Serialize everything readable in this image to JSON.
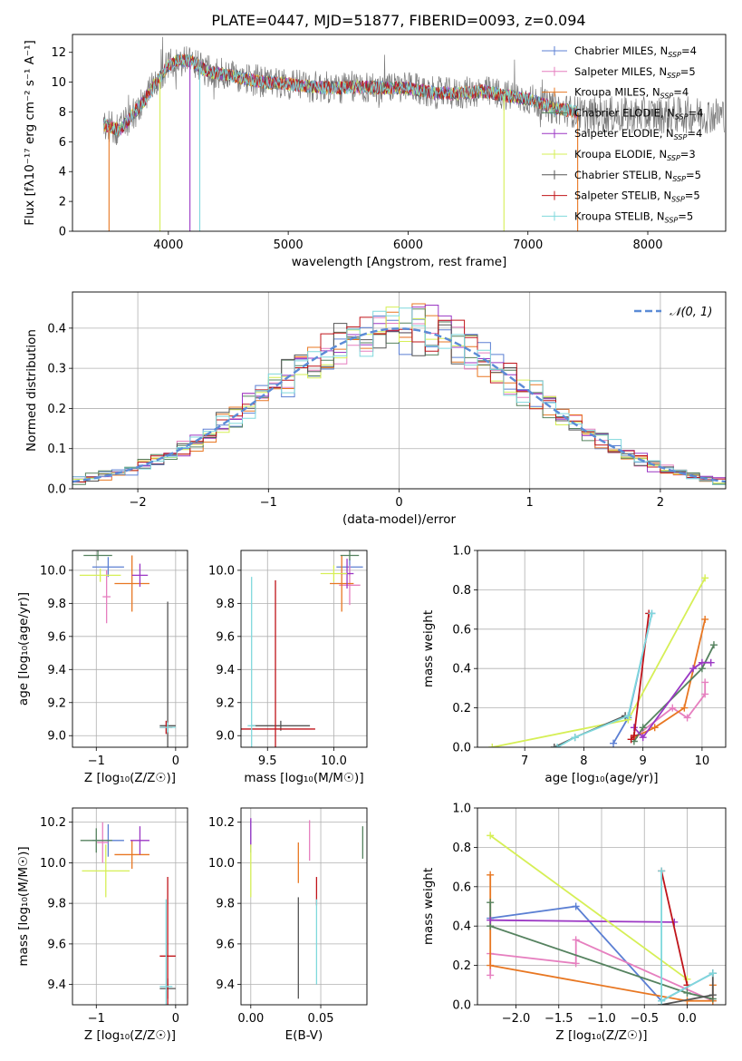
{
  "figure": {
    "title": "PLATE=0447, MJD=51877, FIBERID=0093, z=0.094"
  },
  "models": [
    {
      "name": "Chabrier MILES",
      "nssp": "4",
      "color": "#5b7fd3"
    },
    {
      "name": "Salpeter MILES",
      "nssp": "5",
      "color": "#e67fbf"
    },
    {
      "name": "Kroupa MILES",
      "nssp": "4",
      "color": "#e87722"
    },
    {
      "name": "Chabrier ELODIE",
      "nssp": "4",
      "color": "#55825f"
    },
    {
      "name": "Salpeter ELODIE",
      "nssp": "4",
      "color": "#9b37c4"
    },
    {
      "name": "Kroupa ELODIE",
      "nssp": "3",
      "color": "#d6ef56"
    },
    {
      "name": "Chabrier STELIB",
      "nssp": "5",
      "color": "#555555"
    },
    {
      "name": "Salpeter STELIB",
      "nssp": "5",
      "color": "#c0141a"
    },
    {
      "name": "Kroupa STELIB",
      "nssp": "5",
      "color": "#7fd8dc"
    }
  ],
  "chart_data": [
    {
      "id": "spectrum",
      "type": "line",
      "title": "PLATE=0447, MJD=51877, FIBERID=0093, z=0.094",
      "xlabel": "wavelength [Angstrom, rest frame]",
      "ylabel": "Flux [fλ10⁻¹⁷ erg cm⁻² s⁻¹ A⁻¹]",
      "xlim": [
        3200,
        8650
      ],
      "ylim": [
        0,
        13.2
      ],
      "xticks": [
        "4000",
        "5000",
        "6000",
        "7000",
        "8000"
      ],
      "yticks": [
        "0",
        "2",
        "4",
        "6",
        "8",
        "10",
        "12"
      ],
      "grid": false,
      "legend_position": "top-right",
      "continuum": {
        "x": [
          3450,
          3500,
          3600,
          3700,
          3800,
          3900,
          4000,
          4100,
          4200,
          4300,
          4400,
          4500,
          4600,
          4800,
          5000,
          5200,
          5400,
          5600,
          5800,
          6000,
          6200,
          6400,
          6600,
          6800,
          7000,
          7200,
          7400
        ],
        "y": [
          7.2,
          7.0,
          6.8,
          7.8,
          8.8,
          10.0,
          11.1,
          11.5,
          11.4,
          10.8,
          10.6,
          10.5,
          10.3,
          10.0,
          9.9,
          9.7,
          9.6,
          9.7,
          9.6,
          9.6,
          9.3,
          9.2,
          9.4,
          9.1,
          8.9,
          8.3,
          8.0
        ]
      },
      "observed_noise_amplitude": 1.1
    },
    {
      "id": "residuals",
      "type": "histogram",
      "xlabel": "(data-model)/error",
      "ylabel": "Normed distribution",
      "xlim": [
        -2.5,
        2.5
      ],
      "ylim": [
        0,
        0.49
      ],
      "xticks": [
        "−2",
        "−1",
        "0",
        "1",
        "2"
      ],
      "yticks": [
        "0.0",
        "0.1",
        "0.2",
        "0.3",
        "0.4"
      ],
      "grid": true,
      "legend_position": "top-right",
      "reference_label": "𝒩(0, 1)",
      "bin_width": 0.1
    },
    {
      "id": "age-vs-Z",
      "type": "scatter",
      "xlabel": "Z [log₁₀(Z/Z☉)]",
      "ylabel": "age  [log₁₀(age/yr)]",
      "xlim": [
        -1.3,
        0.15
      ],
      "ylim": [
        8.93,
        10.12
      ],
      "xticks": [
        "−1",
        "0"
      ],
      "yticks": [
        "9.0",
        "9.2",
        "9.4",
        "9.6",
        "9.8",
        "10.0"
      ],
      "grid": true,
      "points": [
        {
          "model": 0,
          "x": -0.85,
          "y": 10.02,
          "xerr": 0.2,
          "yerr": 0.06
        },
        {
          "model": 1,
          "x": -0.87,
          "y": 9.84,
          "xerr": 0.05,
          "yerr": 0.16
        },
        {
          "model": 2,
          "x": -0.55,
          "y": 9.92,
          "xerr": 0.22,
          "yerr": 0.17
        },
        {
          "model": 3,
          "x": -0.98,
          "y": 10.09,
          "xerr": 0.18,
          "yerr": 0.03
        },
        {
          "model": 4,
          "x": -0.45,
          "y": 9.97,
          "xerr": 0.1,
          "yerr": 0.07
        },
        {
          "model": 5,
          "x": -0.95,
          "y": 9.97,
          "xerr": 0.26,
          "yerr": 0.04
        },
        {
          "model": 6,
          "x": -0.1,
          "y": 9.06,
          "xerr": 0.1,
          "yerr": 0.75
        },
        {
          "model": 7,
          "x": -0.12,
          "y": 9.05,
          "xerr": 0.08,
          "yerr": 0.04
        },
        {
          "model": 8,
          "x": -0.1,
          "y": 9.05,
          "xerr": 0.1,
          "yerr": 0.03
        }
      ]
    },
    {
      "id": "age-vs-mass",
      "type": "scatter",
      "xlabel": "mass [log₁₀(M/M☉)]",
      "ylabel": "",
      "xlim": [
        9.3,
        10.25
      ],
      "ylim": [
        8.93,
        10.12
      ],
      "xticks": [
        "9.5",
        "10.0"
      ],
      "yticks": [
        "9.0",
        "9.2",
        "9.4",
        "9.6",
        "9.8",
        "10.0"
      ],
      "grid": true,
      "points": [
        {
          "model": 0,
          "x": 10.12,
          "y": 10.02,
          "xerr": 0.1,
          "yerr": 0.05
        },
        {
          "model": 1,
          "x": 10.12,
          "y": 9.91,
          "xerr": 0.08,
          "yerr": 0.12
        },
        {
          "model": 2,
          "x": 10.06,
          "y": 9.92,
          "xerr": 0.09,
          "yerr": 0.17
        },
        {
          "model": 3,
          "x": 10.12,
          "y": 10.09,
          "xerr": 0.07,
          "yerr": 0.03
        },
        {
          "model": 4,
          "x": 10.1,
          "y": 9.98,
          "xerr": 0.05,
          "yerr": 0.09
        },
        {
          "model": 5,
          "x": 10.0,
          "y": 9.98,
          "xerr": 0.1,
          "yerr": 0.05
        },
        {
          "model": 6,
          "x": 9.6,
          "y": 9.06,
          "xerr": 0.22,
          "yerr": 0.03
        },
        {
          "model": 7,
          "x": 9.56,
          "y": 9.04,
          "xerr": 0.3,
          "yerr": 0.9
        },
        {
          "model": 8,
          "x": 9.38,
          "y": 9.06,
          "xerr": 0.03,
          "yerr": 0.9
        }
      ]
    },
    {
      "id": "weight-vs-age",
      "type": "line",
      "xlabel": "age  [log₁₀(age/yr)]",
      "ylabel": "mass weight",
      "xlim": [
        6.2,
        10.4
      ],
      "ylim": [
        0,
        1.0
      ],
      "xticks": [
        "7",
        "8",
        "9",
        "10"
      ],
      "yticks": [
        "0.0",
        "0.2",
        "0.4",
        "0.6",
        "0.8",
        "1.0"
      ],
      "grid": true,
      "series": [
        {
          "model": 0,
          "x": [
            8.5,
            8.75,
            9.15
          ],
          "y": [
            0.02,
            0.15,
            0.68
          ]
        },
        {
          "model": 1,
          "x": [
            8.85,
            9.5,
            9.75,
            10.05,
            10.05
          ],
          "y": [
            0.05,
            0.2,
            0.15,
            0.27,
            0.33
          ]
        },
        {
          "model": 2,
          "x": [
            8.85,
            9.2,
            9.7,
            10.05
          ],
          "y": [
            0.05,
            0.1,
            0.2,
            0.65
          ]
        },
        {
          "model": 3,
          "x": [
            8.85,
            9.0,
            10.0,
            10.2
          ],
          "y": [
            0.03,
            0.1,
            0.4,
            0.52
          ]
        },
        {
          "model": 4,
          "x": [
            8.85,
            9.0,
            9.85,
            10.0,
            10.15
          ],
          "y": [
            0.1,
            0.05,
            0.4,
            0.43,
            0.43
          ]
        },
        {
          "model": 5,
          "x": [
            6.45,
            8.75,
            10.05
          ],
          "y": [
            0.0,
            0.14,
            0.86
          ]
        },
        {
          "model": 6,
          "x": [
            7.5,
            7.85,
            8.7
          ],
          "y": [
            0.0,
            0.05,
            0.16
          ]
        },
        {
          "model": 7,
          "x": [
            8.8,
            8.85,
            9.1
          ],
          "y": [
            0.04,
            0.06,
            0.68
          ]
        },
        {
          "model": 8,
          "x": [
            7.55,
            7.85,
            8.75,
            9.15
          ],
          "y": [
            0.0,
            0.05,
            0.16,
            0.68
          ]
        }
      ]
    },
    {
      "id": "mass-vs-Z",
      "type": "scatter",
      "xlabel": "Z [log₁₀(Z/Z☉)]",
      "ylabel": "mass [log₁₀(M/M☉)]",
      "xlim": [
        -1.3,
        0.15
      ],
      "ylim": [
        9.3,
        10.27
      ],
      "xticks": [
        "−1",
        "0"
      ],
      "yticks": [
        "9.4",
        "9.6",
        "9.8",
        "10.0",
        "10.2"
      ],
      "grid": true,
      "points": [
        {
          "model": 0,
          "x": -0.85,
          "y": 10.11,
          "xerr": 0.2,
          "yerr": 0.08
        },
        {
          "model": 1,
          "x": -0.92,
          "y": 10.1,
          "xerr": 0.07,
          "yerr": 0.1
        },
        {
          "model": 2,
          "x": -0.55,
          "y": 10.04,
          "xerr": 0.22,
          "yerr": 0.07
        },
        {
          "model": 3,
          "x": -1.0,
          "y": 10.11,
          "xerr": 0.2,
          "yerr": 0.06
        },
        {
          "model": 4,
          "x": -0.45,
          "y": 10.11,
          "xerr": 0.12,
          "yerr": 0.07
        },
        {
          "model": 5,
          "x": -0.88,
          "y": 9.96,
          "xerr": 0.3,
          "yerr": 0.13
        },
        {
          "model": 6,
          "x": -0.1,
          "y": 9.38,
          "xerr": 0.1,
          "yerr": 0.05
        },
        {
          "model": 7,
          "x": -0.1,
          "y": 9.54,
          "xerr": 0.1,
          "yerr": 0.39
        },
        {
          "model": 8,
          "x": -0.12,
          "y": 9.39,
          "xerr": 0.08,
          "yerr": 0.43
        }
      ]
    },
    {
      "id": "mass-vs-EBV",
      "type": "scatter",
      "xlabel": "E(B-V)",
      "ylabel": "",
      "xlim": [
        -0.007,
        0.083
      ],
      "ylim": [
        9.3,
        10.27
      ],
      "xticks": [
        "0.00",
        "0.05"
      ],
      "yticks": [
        "9.4",
        "9.6",
        "9.8",
        "10.0",
        "10.2"
      ],
      "grid": true,
      "points": [
        {
          "model": 0,
          "x": 0.0,
          "y": 10.13,
          "xerr": 0,
          "yerr": 0.08
        },
        {
          "model": 1,
          "x": 0.042,
          "y": 10.11,
          "xerr": 0,
          "yerr": 0.1
        },
        {
          "model": 2,
          "x": 0.034,
          "y": 10.0,
          "xerr": 0,
          "yerr": 0.1
        },
        {
          "model": 3,
          "x": 0.08,
          "y": 10.1,
          "xerr": 0,
          "yerr": 0.08
        },
        {
          "model": 4,
          "x": 0.0,
          "y": 10.15,
          "xerr": 0,
          "yerr": 0.07
        },
        {
          "model": 5,
          "x": 0.0,
          "y": 9.96,
          "xerr": 0,
          "yerr": 0.13
        },
        {
          "model": 6,
          "x": 0.034,
          "y": 9.58,
          "xerr": 0,
          "yerr": 0.25
        },
        {
          "model": 7,
          "x": 0.047,
          "y": 9.86,
          "xerr": 0,
          "yerr": 0.07
        },
        {
          "model": 8,
          "x": 0.047,
          "y": 9.61,
          "xerr": 0,
          "yerr": 0.21
        }
      ]
    },
    {
      "id": "weight-vs-Z",
      "type": "line",
      "xlabel": "Z [log₁₀(Z/Z☉)]",
      "ylabel": "mass weight",
      "xlim": [
        -2.45,
        0.45
      ],
      "ylim": [
        0,
        1.0
      ],
      "xticks": [
        "−2.0",
        "−1.5",
        "−1.0",
        "−0.5",
        "0.0"
      ],
      "yticks": [
        "0.0",
        "0.2",
        "0.4",
        "0.6",
        "0.8",
        "1.0"
      ],
      "grid": true,
      "series": [
        {
          "model": 0,
          "x": [
            -2.3,
            -1.3,
            -0.3,
            0.3
          ],
          "y": [
            0.44,
            0.5,
            0.02,
            0.16
          ]
        },
        {
          "model": 1,
          "x": [
            -2.3,
            -2.3,
            -1.3,
            -1.3,
            0.3
          ],
          "y": [
            0.15,
            0.26,
            0.21,
            0.33,
            0.02
          ]
        },
        {
          "model": 2,
          "x": [
            -2.3,
            -2.3,
            0.0,
            0.3,
            0.3
          ],
          "y": [
            0.66,
            0.2,
            0.02,
            0.02,
            0.1
          ]
        },
        {
          "model": 3,
          "x": [
            -2.3,
            -2.3,
            0.0,
            0.3
          ],
          "y": [
            0.52,
            0.4,
            0.06,
            0.03
          ]
        },
        {
          "model": 4,
          "x": [
            -2.3,
            -0.15
          ],
          "y": [
            0.43,
            0.42
          ]
        },
        {
          "model": 5,
          "x": [
            -2.3,
            0.0
          ],
          "y": [
            0.86,
            0.13
          ]
        },
        {
          "model": 6,
          "x": [
            -0.3,
            0.3,
            0.3
          ],
          "y": [
            0.0,
            0.05,
            0.16
          ]
        },
        {
          "model": 7,
          "x": [
            -0.3,
            0.0
          ],
          "y": [
            0.68,
            0.1
          ]
        },
        {
          "model": 8,
          "x": [
            -0.3,
            -0.3,
            0.3
          ],
          "y": [
            0.68,
            0.02,
            0.16
          ]
        }
      ]
    }
  ]
}
